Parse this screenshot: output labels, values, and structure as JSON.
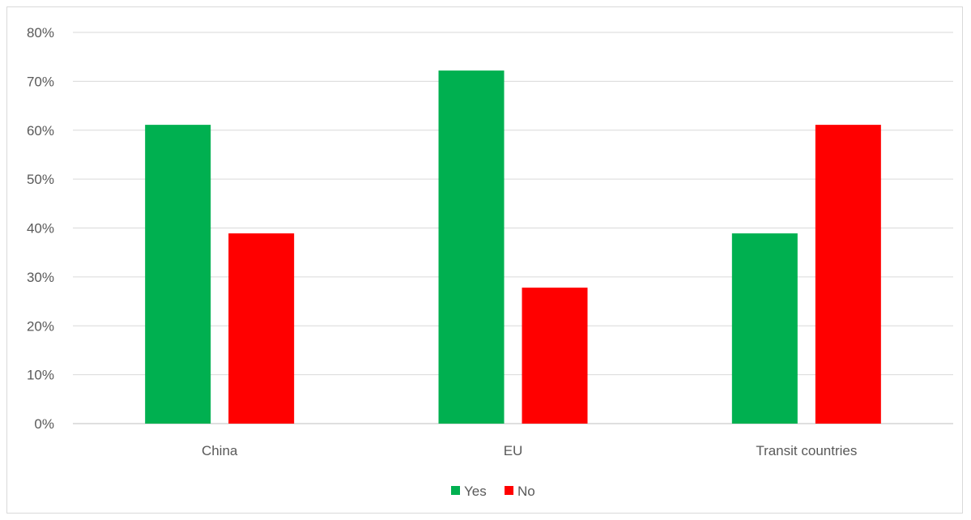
{
  "chart_data": {
    "type": "bar",
    "categories": [
      "China",
      "EU",
      "Transit countries"
    ],
    "series": [
      {
        "name": "Yes",
        "values": [
          61.1,
          72.2,
          38.9
        ],
        "color": "#00b050"
      },
      {
        "name": "No",
        "values": [
          38.9,
          27.8,
          61.1
        ],
        "color": "#ff0000"
      }
    ],
    "ylim": [
      0,
      80
    ],
    "yticks": [
      0,
      10,
      20,
      30,
      40,
      50,
      60,
      70,
      80
    ],
    "ytick_labels": [
      "0%",
      "10%",
      "20%",
      "30%",
      "40%",
      "50%",
      "60%",
      "70%",
      "80%"
    ],
    "grid": true,
    "legend_position": "bottom"
  }
}
